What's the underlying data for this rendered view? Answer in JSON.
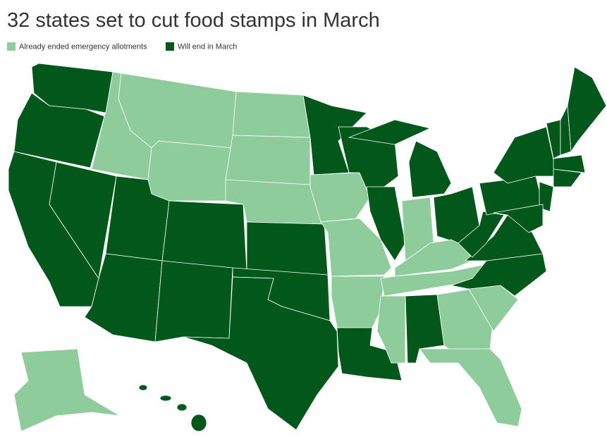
{
  "header": {
    "title": "32 states set to cut food stamps in March"
  },
  "legend": [
    {
      "label": "Already ended emergency allotments",
      "color": "#8fcc9c"
    },
    {
      "label": "Will end in March",
      "color": "#02581b"
    }
  ]
}
